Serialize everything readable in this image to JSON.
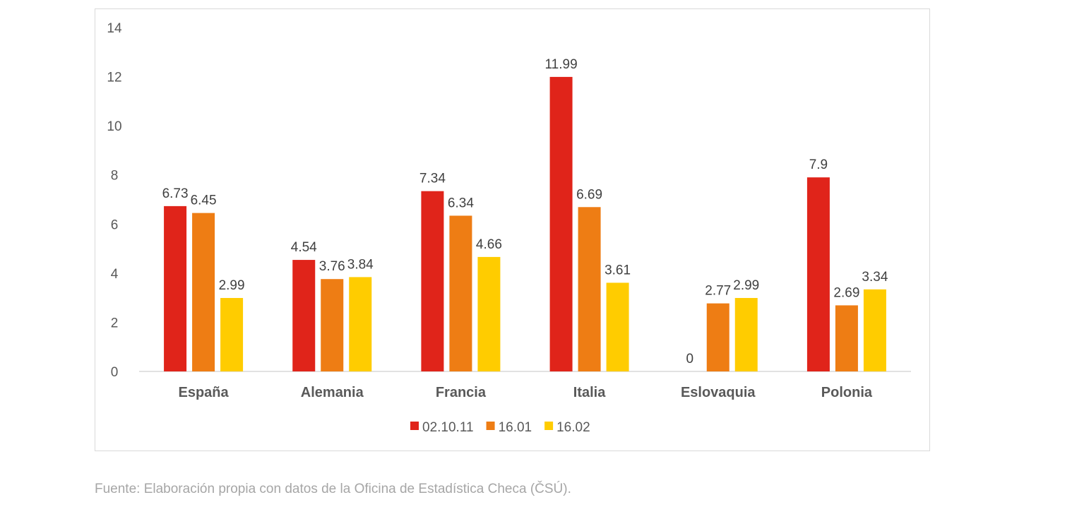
{
  "chart_data": {
    "type": "bar",
    "categories": [
      "España",
      "Alemania",
      "Francia",
      "Italia",
      "Eslovaquia",
      "Polonia"
    ],
    "series": [
      {
        "name": "02.10.11",
        "color": "#e0241a",
        "values": [
          6.73,
          4.54,
          7.34,
          11.99,
          0,
          7.9
        ]
      },
      {
        "name": "16.01",
        "color": "#ee7d14",
        "values": [
          6.45,
          3.76,
          6.34,
          6.69,
          2.77,
          2.69
        ]
      },
      {
        "name": "16.02",
        "color": "#ffcc00",
        "values": [
          2.99,
          3.84,
          4.66,
          3.61,
          2.99,
          3.34
        ]
      }
    ],
    "yticks": [
      "0",
      "2",
      "4",
      "6",
      "8",
      "10",
      "12",
      "14"
    ],
    "ylim": [
      0,
      14
    ],
    "grid": false,
    "legend": "bottom",
    "title": "",
    "xlabel": "",
    "ylabel": ""
  },
  "footer": "Fuente: Elaboración propia con datos de la Oficina de Estadística Checa (ČSÚ)."
}
